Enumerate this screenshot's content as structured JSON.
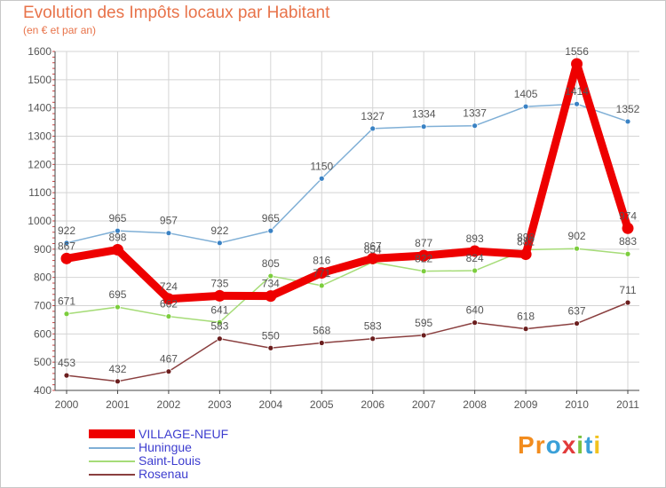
{
  "title": "Evolution des Impôts locaux par Habitant",
  "subtitle": "(en € et par an)",
  "logo_text": "Proxiti",
  "colors": {
    "title": "#e8734a",
    "legend_text": "#3d3dcf",
    "grid": "#d4d4d4",
    "axis": "#444444"
  },
  "chart_data": {
    "type": "line",
    "title": "Evolution des Impôts locaux par Habitant",
    "subtitle": "(en € et par an)",
    "xlabel": "",
    "ylabel": "",
    "x": [
      2000,
      2001,
      2002,
      2003,
      2004,
      2005,
      2006,
      2007,
      2008,
      2009,
      2010,
      2011
    ],
    "ylim": [
      400,
      1600
    ],
    "yticks": [
      400,
      500,
      600,
      700,
      800,
      900,
      1000,
      1100,
      1200,
      1300,
      1400,
      1500,
      1600
    ],
    "grid": true,
    "legend_position": "bottom-left",
    "series": [
      {
        "name": "VILLAGE-NEUF",
        "color": "#ee0000",
        "point_color": "#ee0000",
        "style": "thick",
        "values": [
          867,
          898,
          724,
          735,
          734,
          816,
          867,
          877,
          893,
          882,
          1556,
          974
        ],
        "labels": [
          "867",
          "898",
          "724",
          "735",
          "734",
          "816",
          "867",
          "877",
          "893",
          "882",
          "1556",
          "974"
        ]
      },
      {
        "name": "Huningue",
        "color": "#7fafd6",
        "point_color": "#3a82c4",
        "style": "thin",
        "values": [
          922,
          965,
          957,
          922,
          965,
          1150,
          1327,
          1334,
          1337,
          1405,
          1414,
          1352
        ],
        "labels": [
          "922",
          "965",
          "957",
          "922",
          "965",
          "1150",
          "1327",
          "1334",
          "1337",
          "1405",
          "1414",
          "1352"
        ]
      },
      {
        "name": "Saint-Louis",
        "color": "#a6dc78",
        "point_color": "#7ccd3d",
        "style": "thin",
        "values": [
          671,
          695,
          662,
          641,
          805,
          771,
          854,
          822,
          824,
          898,
          902,
          883
        ],
        "labels": [
          "671",
          "695",
          "662",
          "641",
          "805",
          "771",
          "854",
          "822",
          "824",
          "898",
          "902",
          "883"
        ]
      },
      {
        "name": "Rosenau",
        "color": "#8a3f3f",
        "point_color": "#6b1e1e",
        "style": "thin",
        "values": [
          453,
          432,
          467,
          583,
          550,
          568,
          583,
          595,
          640,
          618,
          637,
          711
        ],
        "labels": [
          "453",
          "432",
          "467",
          "583",
          "550",
          "568",
          "583",
          "595",
          "640",
          "618",
          "637",
          "711"
        ]
      }
    ]
  }
}
